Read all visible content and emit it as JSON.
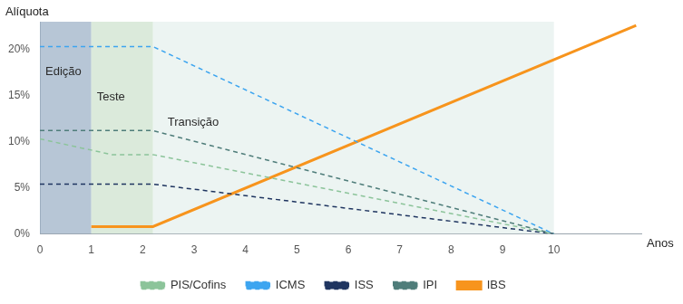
{
  "chart_data": {
    "type": "line",
    "y_label": "Alíquota",
    "x_label": "Anos",
    "xlim": [
      0,
      11.7
    ],
    "xticks": [
      0,
      1,
      2,
      3,
      4,
      5,
      6,
      7,
      8,
      9,
      10
    ],
    "ylim": [
      0,
      23
    ],
    "yticks": [
      {
        "value": 0,
        "label": "0%"
      },
      {
        "value": 5,
        "label": "5%"
      },
      {
        "value": 10,
        "label": "10%"
      },
      {
        "value": 15,
        "label": "15%"
      },
      {
        "value": 20,
        "label": "20%"
      }
    ],
    "grid": false,
    "legend": "bottom",
    "phases": [
      {
        "label": "Edição",
        "start": 0,
        "end": 1,
        "color": "#9fb3c8"
      },
      {
        "label": "Teste",
        "start": 1,
        "end": 2.2,
        "color": "#cfe3cf"
      },
      {
        "label": "Transição",
        "start": 2.2,
        "end": 10,
        "color": "#e6f0ee"
      }
    ],
    "series": [
      {
        "name": "PIS/Cofins",
        "color": "#8cc49a",
        "line_style": "dashed",
        "x": [
          0,
          1.4,
          2.2,
          10
        ],
        "values": [
          10.3,
          8.6,
          8.6,
          0
        ]
      },
      {
        "name": "ICMS",
        "color": "#3da5f0",
        "line_style": "dashed",
        "x": [
          0,
          2.2,
          10
        ],
        "values": [
          20.3,
          20.3,
          0
        ]
      },
      {
        "name": "ISS",
        "color": "#1f3560",
        "line_style": "dashed",
        "x": [
          0,
          2.2,
          10
        ],
        "values": [
          5.4,
          5.4,
          0
        ]
      },
      {
        "name": "IPI",
        "color": "#4f7d7a",
        "line_style": "dashed",
        "x": [
          0,
          2.2,
          10
        ],
        "values": [
          11.2,
          11.2,
          0
        ]
      },
      {
        "name": "IBS",
        "color": "#f7941d",
        "line_style": "solid",
        "x": [
          1,
          2.2,
          11.6
        ],
        "values": [
          0.8,
          0.8,
          22.6
        ]
      }
    ]
  }
}
